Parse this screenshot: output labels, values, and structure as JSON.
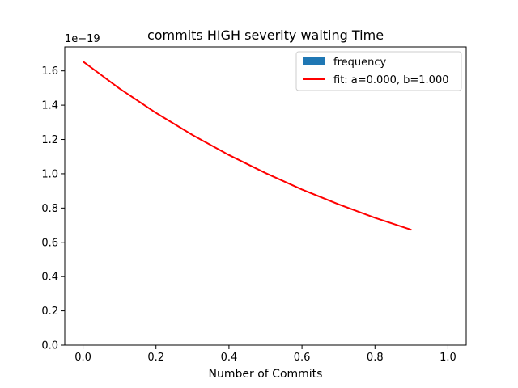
{
  "chart_data": {
    "type": "line",
    "title": "commits HIGH severity waiting Time",
    "xlabel": "Number of Commits",
    "ylabel": "",
    "y_offset_label": "1e−19",
    "xlim": [
      -0.05,
      1.05
    ],
    "ylim": [
      0,
      1.74
    ],
    "x_ticks": [
      0.0,
      0.2,
      0.4,
      0.6,
      0.8,
      1.0
    ],
    "x_tick_labels": [
      "0.0",
      "0.2",
      "0.4",
      "0.6",
      "0.8",
      "1.0"
    ],
    "y_ticks": [
      0.0,
      0.2,
      0.4,
      0.6,
      0.8,
      1.0,
      1.2,
      1.4,
      1.6
    ],
    "y_tick_labels": [
      "0.0",
      "0.2",
      "0.4",
      "0.6",
      "0.8",
      "1.0",
      "1.2",
      "1.4",
      "1.6"
    ],
    "grid": false,
    "legend_position": "top-right",
    "series": [
      {
        "name": "frequency",
        "kind": "bar",
        "color": "#1f77b4",
        "values": []
      },
      {
        "name": "fit: a=0.000, b=1.000",
        "kind": "line",
        "color": "#ff0000",
        "x": [
          0.0,
          0.1,
          0.2,
          0.3,
          0.4,
          0.5,
          0.6,
          0.7,
          0.8,
          0.9
        ],
        "y": [
          1.655,
          1.497,
          1.355,
          1.226,
          1.109,
          1.004,
          0.908,
          0.822,
          0.743,
          0.673
        ]
      }
    ]
  }
}
